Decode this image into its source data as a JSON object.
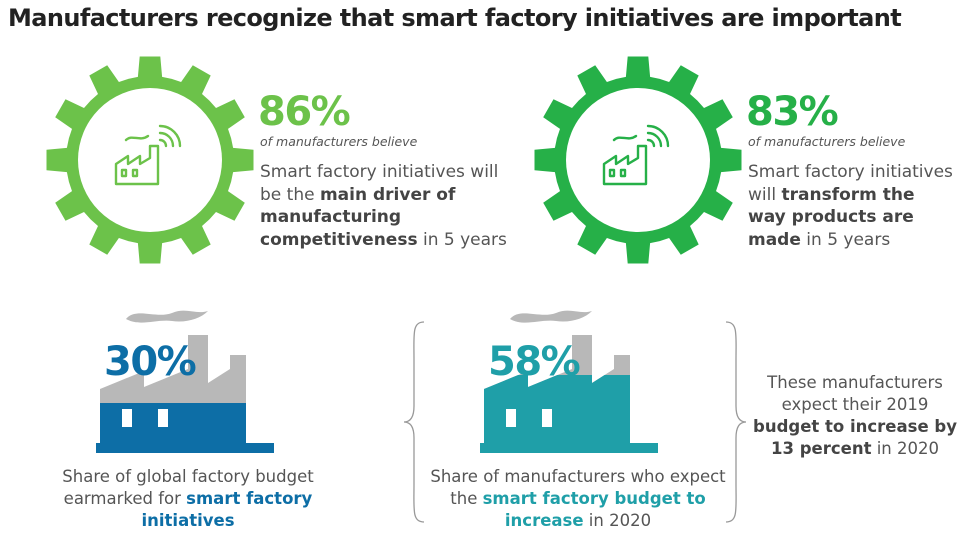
{
  "title": "Manufacturers recognize that smart factory initiatives are important",
  "colors": {
    "gear_left": "#6cc24a",
    "gear_right": "#26b048",
    "blue": "#0d6ea6",
    "teal": "#1f9fa8",
    "smoke_gray": "#b8b8b8",
    "text": "#555555"
  },
  "stat1": {
    "percent": "86%",
    "believe": "of manufacturers believe",
    "desc_pre": "Smart factory initiatives will be the ",
    "desc_bold": "main driver of manufacturing competitiveness",
    "desc_post": " in 5 years"
  },
  "stat2": {
    "percent": "83%",
    "believe": "of manufacturers believe",
    "desc_pre": "Smart factory initiatives will ",
    "desc_bold": "transform the way products are made",
    "desc_post": " in 5 years"
  },
  "stat3": {
    "percent": "30%",
    "fill_fraction": 0.3,
    "caption_pre": "Share of global factory budget earmarked for ",
    "caption_bold": "smart factory initiatives",
    "caption_post": ""
  },
  "stat4": {
    "percent": "58%",
    "fill_fraction": 0.58,
    "caption_pre": "Share of manufacturers who expect the ",
    "caption_bold": "smart factory budget to increase",
    "caption_post": " in 2020"
  },
  "side_note": {
    "pre": "These manufacturers expect their 2019 ",
    "bold": "budget to increase by 13 percent",
    "post": " in 2020"
  }
}
